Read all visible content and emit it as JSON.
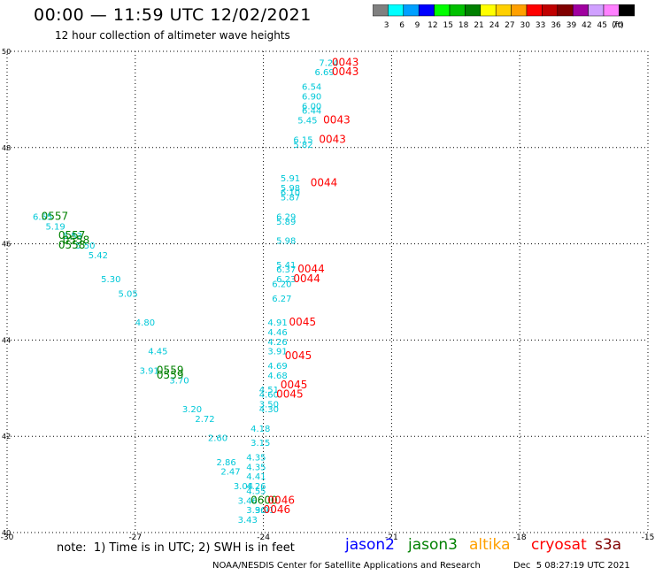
{
  "header": {
    "title": "00:00 — 11:59 UTC 12/02/2021",
    "subtitle": "12 hour collection of altimeter wave heights"
  },
  "legend": {
    "unit": "(ft)",
    "bins": [
      {
        "label": "3",
        "color": "#808080"
      },
      {
        "label": "6",
        "color": "#00ffff"
      },
      {
        "label": "9",
        "color": "#00a0ff"
      },
      {
        "label": "12",
        "color": "#0000ff"
      },
      {
        "label": "15",
        "color": "#00ff00"
      },
      {
        "label": "18",
        "color": "#00c000"
      },
      {
        "label": "21",
        "color": "#008000"
      },
      {
        "label": "24",
        "color": "#ffff00"
      },
      {
        "label": "27",
        "color": "#ffd000"
      },
      {
        "label": "30",
        "color": "#ffa000"
      },
      {
        "label": "33",
        "color": "#ff0000"
      },
      {
        "label": "36",
        "color": "#c00000"
      },
      {
        "label": "39",
        "color": "#800000"
      },
      {
        "label": "42",
        "color": "#a000a0"
      },
      {
        "label": "45",
        "color": "#d0a0ff"
      },
      {
        "label": "70",
        "color": "#ff80ff"
      },
      {
        "label": "",
        "color": "#000000"
      }
    ]
  },
  "footer": {
    "notes": "note:  1) Time is in UTC; 2) SWH is in feet",
    "credit": "NOAA/NESDIS Center for Satellite Applications and Research",
    "generated": "Dec  5 08:27:19 UTC 2021",
    "satellites": [
      {
        "name": "jason2",
        "color": "#0000ff"
      },
      {
        "name": "jason3",
        "color": "#008000"
      },
      {
        "name": "altika",
        "color": "#ffa000"
      },
      {
        "name": "cryosat",
        "color": "#ff0000"
      },
      {
        "name": "s3a",
        "color": "#800000"
      }
    ]
  },
  "chart_data": {
    "type": "scatter",
    "title": "00:00 — 11:59 UTC 12/02/2021",
    "xlim": [
      -30,
      -15
    ],
    "ylim": [
      40,
      50
    ],
    "xticks": [
      -30,
      -27,
      -24,
      -21,
      -18,
      -15
    ],
    "xtick_labels": [
      "-30",
      "-27",
      "-24",
      "-21",
      "-18",
      "-15"
    ],
    "yticks": [
      40,
      42,
      44,
      46,
      48,
      50
    ],
    "ytick_labels": [
      "40",
      "42",
      "44",
      "46",
      "48",
      "50"
    ],
    "grid": true,
    "swh_labels": [
      {
        "x": -29.4,
        "y": 46.5,
        "v": "6.55"
      },
      {
        "x": -29.1,
        "y": 46.3,
        "v": "5.19"
      },
      {
        "x": -28.7,
        "y": 46.1,
        "v": "5.53"
      },
      {
        "x": -28.4,
        "y": 45.9,
        "v": "5.50"
      },
      {
        "x": -28.1,
        "y": 45.7,
        "v": "5.42"
      },
      {
        "x": -27.8,
        "y": 45.2,
        "v": "5.30"
      },
      {
        "x": -27.4,
        "y": 44.9,
        "v": "5.05"
      },
      {
        "x": -27.0,
        "y": 44.3,
        "v": "4.80"
      },
      {
        "x": -26.7,
        "y": 43.7,
        "v": "4.45"
      },
      {
        "x": -26.9,
        "y": 43.3,
        "v": "3.91"
      },
      {
        "x": -26.2,
        "y": 43.1,
        "v": "3.70"
      },
      {
        "x": -25.9,
        "y": 42.5,
        "v": "3.20"
      },
      {
        "x": -25.6,
        "y": 42.3,
        "v": "2.72"
      },
      {
        "x": -25.3,
        "y": 41.9,
        "v": "2.60"
      },
      {
        "x": -25.1,
        "y": 41.4,
        "v": "2.86"
      },
      {
        "x": -25.0,
        "y": 41.2,
        "v": "2.47"
      },
      {
        "x": -24.7,
        "y": 40.9,
        "v": "3.04"
      },
      {
        "x": -24.6,
        "y": 40.6,
        "v": "3.46"
      },
      {
        "x": -24.4,
        "y": 40.4,
        "v": "3.96"
      },
      {
        "x": -24.2,
        "y": 40.4,
        "v": "3.91"
      },
      {
        "x": -24.6,
        "y": 40.2,
        "v": "3.43"
      },
      {
        "x": -22.7,
        "y": 49.7,
        "v": "7.24"
      },
      {
        "x": -22.8,
        "y": 49.5,
        "v": "6.69"
      },
      {
        "x": -23.1,
        "y": 49.2,
        "v": "6.54"
      },
      {
        "x": -23.1,
        "y": 49.0,
        "v": "6.90"
      },
      {
        "x": -23.1,
        "y": 48.8,
        "v": "6.00"
      },
      {
        "x": -23.1,
        "y": 48.7,
        "v": "6.44"
      },
      {
        "x": -23.2,
        "y": 48.5,
        "v": "5.45"
      },
      {
        "x": -23.3,
        "y": 48.1,
        "v": "6.15"
      },
      {
        "x": -23.3,
        "y": 48.0,
        "v": "5.82"
      },
      {
        "x": -23.6,
        "y": 47.3,
        "v": "5.91"
      },
      {
        "x": -23.6,
        "y": 47.1,
        "v": "5.98"
      },
      {
        "x": -23.6,
        "y": 47.0,
        "v": "6.10"
      },
      {
        "x": -23.6,
        "y": 46.9,
        "v": "5.87"
      },
      {
        "x": -23.7,
        "y": 46.5,
        "v": "6.29"
      },
      {
        "x": -23.7,
        "y": 46.4,
        "v": "5.89"
      },
      {
        "x": -23.7,
        "y": 46.0,
        "v": "5.98"
      },
      {
        "x": -23.7,
        "y": 45.5,
        "v": "5.41"
      },
      {
        "x": -23.7,
        "y": 45.4,
        "v": "6.37"
      },
      {
        "x": -23.7,
        "y": 45.2,
        "v": "6.23"
      },
      {
        "x": -23.8,
        "y": 45.1,
        "v": "6.20"
      },
      {
        "x": -23.8,
        "y": 44.8,
        "v": "6.27"
      },
      {
        "x": -23.9,
        "y": 44.3,
        "v": "4.91"
      },
      {
        "x": -23.9,
        "y": 44.1,
        "v": "4.46"
      },
      {
        "x": -23.9,
        "y": 43.9,
        "v": "4.26"
      },
      {
        "x": -23.9,
        "y": 43.7,
        "v": "3.91"
      },
      {
        "x": -23.9,
        "y": 43.4,
        "v": "4.69"
      },
      {
        "x": -23.9,
        "y": 43.2,
        "v": "4.68"
      },
      {
        "x": -24.1,
        "y": 42.9,
        "v": "4.51"
      },
      {
        "x": -24.1,
        "y": 42.8,
        "v": "4.60"
      },
      {
        "x": -24.1,
        "y": 42.6,
        "v": "3.50"
      },
      {
        "x": -24.1,
        "y": 42.5,
        "v": "4.30"
      },
      {
        "x": -24.3,
        "y": 42.1,
        "v": "4.18"
      },
      {
        "x": -24.3,
        "y": 41.8,
        "v": "3.15"
      },
      {
        "x": -24.4,
        "y": 41.5,
        "v": "4.35"
      },
      {
        "x": -24.4,
        "y": 41.3,
        "v": "4.35"
      },
      {
        "x": -24.4,
        "y": 41.1,
        "v": "4.41"
      },
      {
        "x": -24.4,
        "y": 40.9,
        "v": "4.26"
      },
      {
        "x": -24.4,
        "y": 40.8,
        "v": "4.55"
      }
    ],
    "pass_labels": [
      {
        "x": -29.2,
        "y": 46.5,
        "v": "0557",
        "sat": "jason3"
      },
      {
        "x": -28.8,
        "y": 46.1,
        "v": "0557",
        "sat": "jason3"
      },
      {
        "x": -28.7,
        "y": 46.0,
        "v": "0558",
        "sat": "jason3"
      },
      {
        "x": -28.8,
        "y": 45.9,
        "v": "0558",
        "sat": "jason3"
      },
      {
        "x": -26.5,
        "y": 43.3,
        "v": "0559",
        "sat": "jason3"
      },
      {
        "x": -26.5,
        "y": 43.2,
        "v": "0559",
        "sat": "jason3"
      },
      {
        "x": -24.3,
        "y": 40.6,
        "v": "0600",
        "sat": "jason3"
      },
      {
        "x": -22.4,
        "y": 49.7,
        "v": "0043",
        "sat": "cryosat"
      },
      {
        "x": -22.4,
        "y": 49.5,
        "v": "0043",
        "sat": "cryosat"
      },
      {
        "x": -22.6,
        "y": 48.5,
        "v": "0043",
        "sat": "cryosat"
      },
      {
        "x": -22.7,
        "y": 48.1,
        "v": "0043",
        "sat": "cryosat"
      },
      {
        "x": -22.9,
        "y": 47.2,
        "v": "0044",
        "sat": "cryosat"
      },
      {
        "x": -23.2,
        "y": 45.4,
        "v": "0044",
        "sat": "cryosat"
      },
      {
        "x": -23.3,
        "y": 45.2,
        "v": "0044",
        "sat": "cryosat"
      },
      {
        "x": -23.4,
        "y": 44.3,
        "v": "0045",
        "sat": "cryosat"
      },
      {
        "x": -23.5,
        "y": 43.6,
        "v": "0045",
        "sat": "cryosat"
      },
      {
        "x": -23.6,
        "y": 43.0,
        "v": "0045",
        "sat": "cryosat"
      },
      {
        "x": -23.7,
        "y": 42.8,
        "v": "0045",
        "sat": "cryosat"
      },
      {
        "x": -23.9,
        "y": 40.6,
        "v": "0046",
        "sat": "cryosat"
      },
      {
        "x": -24.0,
        "y": 40.4,
        "v": "0046",
        "sat": "cryosat"
      }
    ]
  }
}
